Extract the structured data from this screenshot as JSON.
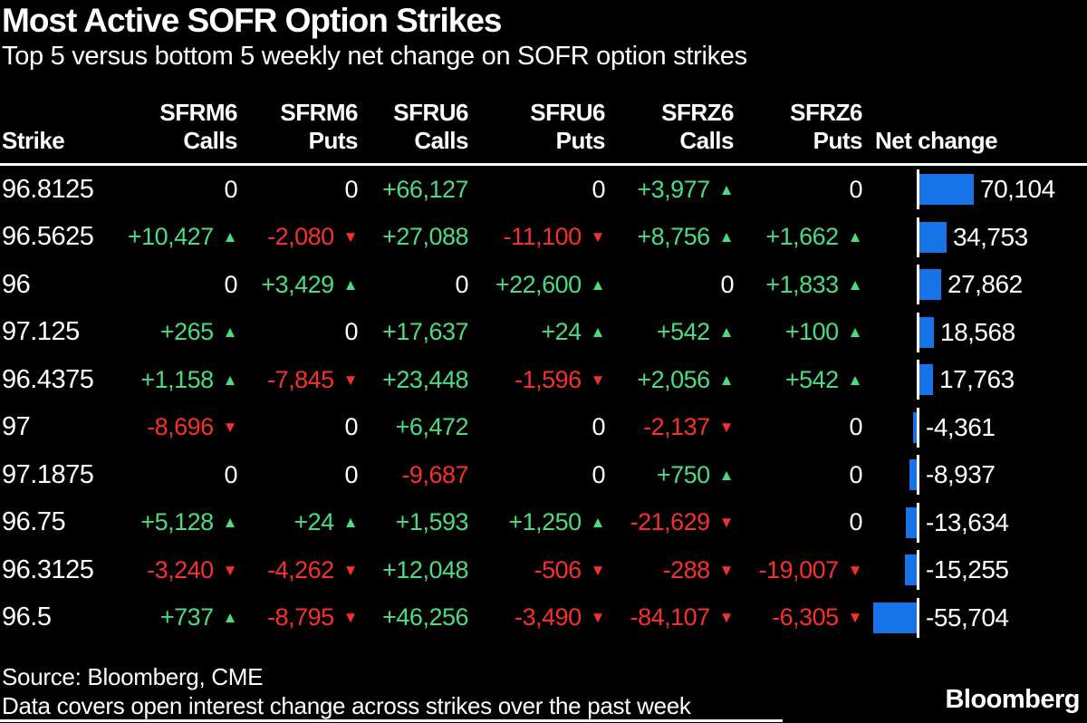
{
  "title": "Most Active SOFR Option Strikes",
  "subtitle": "Top 5 versus bottom 5 weekly net change on SOFR option strikes",
  "colors": {
    "green": "#4ADC7E",
    "red": "#F7302C",
    "blue": "#1673E8",
    "white": "#FFFFFF",
    "background": "#000000"
  },
  "icons": {
    "up_triangle": "▲",
    "down_triangle": "▼"
  },
  "table": {
    "strike_header": "Strike",
    "net_change_header": "Net change",
    "column_groups": [
      {
        "contract": "SFRM6",
        "type": "Calls"
      },
      {
        "contract": "SFRM6",
        "type": "Puts"
      },
      {
        "contract": "SFRU6",
        "type": "Calls"
      },
      {
        "contract": "SFRU6",
        "type": "Puts"
      },
      {
        "contract": "SFRZ6",
        "type": "Calls"
      },
      {
        "contract": "SFRZ6",
        "type": "Puts"
      }
    ],
    "rows": [
      {
        "strike": "96.8125",
        "cells": [
          {
            "text": "0",
            "state": "zero"
          },
          {
            "text": "0",
            "state": "zero"
          },
          {
            "text": "+66,127",
            "state": "pos"
          },
          {
            "text": "0",
            "state": "zero"
          },
          {
            "text": "+3,977",
            "state": "pos",
            "dir": "up"
          },
          {
            "text": "0",
            "state": "zero"
          }
        ],
        "net": {
          "value": 70104,
          "label": "70,104"
        }
      },
      {
        "strike": "96.5625",
        "cells": [
          {
            "text": "+10,427",
            "state": "pos",
            "dir": "up"
          },
          {
            "text": "-2,080",
            "state": "neg",
            "dir": "down"
          },
          {
            "text": "+27,088",
            "state": "pos"
          },
          {
            "text": "-11,100",
            "state": "neg",
            "dir": "down"
          },
          {
            "text": "+8,756",
            "state": "pos",
            "dir": "up"
          },
          {
            "text": "+1,662",
            "state": "pos",
            "dir": "up"
          }
        ],
        "net": {
          "value": 34753,
          "label": "34,753"
        }
      },
      {
        "strike": "96",
        "cells": [
          {
            "text": "0",
            "state": "zero"
          },
          {
            "text": "+3,429",
            "state": "pos",
            "dir": "up"
          },
          {
            "text": "0",
            "state": "zero"
          },
          {
            "text": "+22,600",
            "state": "pos",
            "dir": "up"
          },
          {
            "text": "0",
            "state": "zero"
          },
          {
            "text": "+1,833",
            "state": "pos",
            "dir": "up"
          }
        ],
        "net": {
          "value": 27862,
          "label": "27,862"
        }
      },
      {
        "strike": "97.125",
        "cells": [
          {
            "text": "+265",
            "state": "pos",
            "dir": "up"
          },
          {
            "text": "0",
            "state": "zero"
          },
          {
            "text": "+17,637",
            "state": "pos"
          },
          {
            "text": "+24",
            "state": "pos",
            "dir": "up"
          },
          {
            "text": "+542",
            "state": "pos",
            "dir": "up"
          },
          {
            "text": "+100",
            "state": "pos",
            "dir": "up"
          }
        ],
        "net": {
          "value": 18568,
          "label": "18,568"
        }
      },
      {
        "strike": "96.4375",
        "cells": [
          {
            "text": "+1,158",
            "state": "pos",
            "dir": "up"
          },
          {
            "text": "-7,845",
            "state": "neg",
            "dir": "down"
          },
          {
            "text": "+23,448",
            "state": "pos"
          },
          {
            "text": "-1,596",
            "state": "neg",
            "dir": "down"
          },
          {
            "text": "+2,056",
            "state": "pos",
            "dir": "up"
          },
          {
            "text": "+542",
            "state": "pos",
            "dir": "up"
          }
        ],
        "net": {
          "value": 17763,
          "label": "17,763"
        }
      },
      {
        "strike": "97",
        "cells": [
          {
            "text": "-8,696",
            "state": "neg",
            "dir": "down"
          },
          {
            "text": "0",
            "state": "zero"
          },
          {
            "text": "+6,472",
            "state": "pos"
          },
          {
            "text": "0",
            "state": "zero"
          },
          {
            "text": "-2,137",
            "state": "neg",
            "dir": "down"
          },
          {
            "text": "0",
            "state": "zero"
          }
        ],
        "net": {
          "value": -4361,
          "label": "-4,361"
        }
      },
      {
        "strike": "97.1875",
        "cells": [
          {
            "text": "0",
            "state": "zero"
          },
          {
            "text": "0",
            "state": "zero"
          },
          {
            "text": "-9,687",
            "state": "neg"
          },
          {
            "text": "0",
            "state": "zero"
          },
          {
            "text": "+750",
            "state": "pos",
            "dir": "up"
          },
          {
            "text": "0",
            "state": "zero"
          }
        ],
        "net": {
          "value": -8937,
          "label": "-8,937"
        }
      },
      {
        "strike": "96.75",
        "cells": [
          {
            "text": "+5,128",
            "state": "pos",
            "dir": "up"
          },
          {
            "text": "+24",
            "state": "pos",
            "dir": "up"
          },
          {
            "text": "+1,593",
            "state": "pos"
          },
          {
            "text": "+1,250",
            "state": "pos",
            "dir": "up"
          },
          {
            "text": "-21,629",
            "state": "neg",
            "dir": "down"
          },
          {
            "text": "0",
            "state": "zero"
          }
        ],
        "net": {
          "value": -13634,
          "label": "-13,634"
        }
      },
      {
        "strike": "96.3125",
        "cells": [
          {
            "text": "-3,240",
            "state": "neg",
            "dir": "down"
          },
          {
            "text": "-4,262",
            "state": "neg",
            "dir": "down"
          },
          {
            "text": "+12,048",
            "state": "pos"
          },
          {
            "text": "-506",
            "state": "neg",
            "dir": "down"
          },
          {
            "text": "-288",
            "state": "neg",
            "dir": "down"
          },
          {
            "text": "-19,007",
            "state": "neg",
            "dir": "down"
          }
        ],
        "net": {
          "value": -15255,
          "label": "-15,255"
        }
      },
      {
        "strike": "96.5",
        "cells": [
          {
            "text": "+737",
            "state": "pos",
            "dir": "up"
          },
          {
            "text": "-8,795",
            "state": "neg",
            "dir": "down"
          },
          {
            "text": "+46,256",
            "state": "pos"
          },
          {
            "text": "-3,490",
            "state": "neg",
            "dir": "down"
          },
          {
            "text": "-84,107",
            "state": "neg",
            "dir": "down"
          },
          {
            "text": "-6,305",
            "state": "neg",
            "dir": "down"
          }
        ],
        "net": {
          "value": -55704,
          "label": "-55,704"
        }
      }
    ]
  },
  "chart_data": {
    "type": "table",
    "title": "Most Active SOFR Option Strikes",
    "subtitle": "Top 5 versus bottom 5 weekly net change on SOFR option strikes",
    "columns": [
      "Strike",
      "SFRM6 Calls",
      "SFRM6 Puts",
      "SFRU6 Calls",
      "SFRU6 Puts",
      "SFRZ6 Calls",
      "SFRZ6 Puts",
      "Net change"
    ],
    "rows": [
      [
        "96.8125",
        0,
        0,
        66127,
        0,
        3977,
        0,
        70104
      ],
      [
        "96.5625",
        10427,
        -2080,
        27088,
        -11100,
        8756,
        1662,
        34753
      ],
      [
        "96",
        0,
        3429,
        0,
        22600,
        0,
        1833,
        27862
      ],
      [
        "97.125",
        265,
        0,
        17637,
        24,
        542,
        100,
        18568
      ],
      [
        "96.4375",
        1158,
        -7845,
        23448,
        -1596,
        2056,
        542,
        17763
      ],
      [
        "97",
        -8696,
        0,
        6472,
        0,
        -2137,
        0,
        -4361
      ],
      [
        "97.1875",
        0,
        0,
        -9687,
        0,
        750,
        0,
        -8937
      ],
      [
        "96.75",
        5128,
        24,
        1593,
        1250,
        -21629,
        0,
        -13634
      ],
      [
        "96.3125",
        -3240,
        -4262,
        12048,
        -506,
        -288,
        -19007,
        -15255
      ],
      [
        "96.5",
        737,
        -8795,
        46256,
        -3490,
        -84107,
        -6305,
        -55704
      ]
    ],
    "net_change_bars": {
      "type": "bar",
      "orientation": "horizontal",
      "values": [
        70104,
        34753,
        27862,
        18568,
        17763,
        -4361,
        -8937,
        -13634,
        -15255,
        -55704
      ],
      "max_abs": 70104,
      "bar_color": "#1673E8"
    }
  },
  "footer": {
    "source": "Source: Bloomberg, CME",
    "note": "Data covers open interest change across strikes over the past week",
    "logo": "Bloomberg"
  }
}
